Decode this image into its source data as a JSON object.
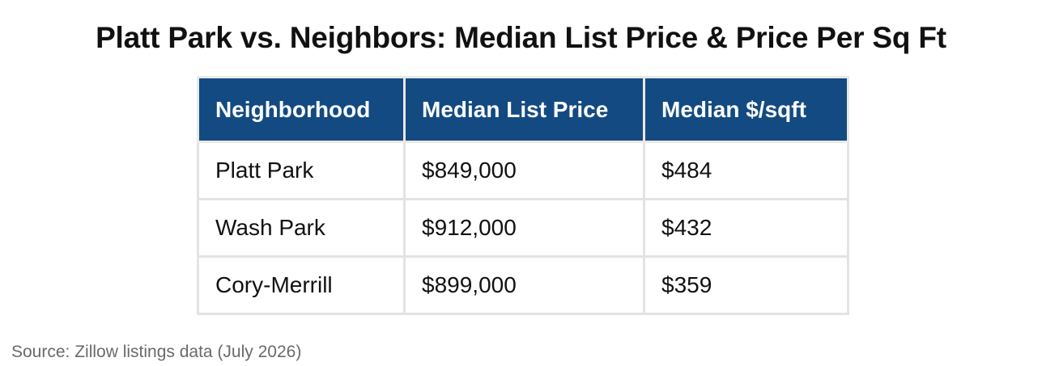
{
  "title": "Platt Park vs. Neighbors: Median List Price & Price Per Sq Ft",
  "table": {
    "headers": [
      "Neighborhood",
      "Median List Price",
      "Median $/sqft"
    ],
    "rows": [
      [
        "Platt Park",
        "$849,000",
        "$484"
      ],
      [
        "Wash Park",
        "$912,000",
        "$432"
      ],
      [
        "Cory-Merrill",
        "$899,000",
        "$359"
      ]
    ]
  },
  "source": "Source: Zillow listings data (July 2026)",
  "colors": {
    "header_background": "#134a82",
    "header_text": "#ffffff",
    "grid_lines": "#e3e3e3",
    "source_text": "#6a6a6a"
  },
  "chart_data": {
    "type": "table",
    "title": "Platt Park vs. Neighbors: Median List Price & Price Per Sq Ft",
    "columns": [
      "Neighborhood",
      "Median List Price",
      "Median $/sqft"
    ],
    "rows": [
      {
        "Neighborhood": "Platt Park",
        "Median List Price": 849000,
        "Median $/sqft": 484
      },
      {
        "Neighborhood": "Wash Park",
        "Median List Price": 912000,
        "Median $/sqft": 432
      },
      {
        "Neighborhood": "Cory-Merrill",
        "Median List Price": 899000,
        "Median $/sqft": 359
      }
    ]
  }
}
